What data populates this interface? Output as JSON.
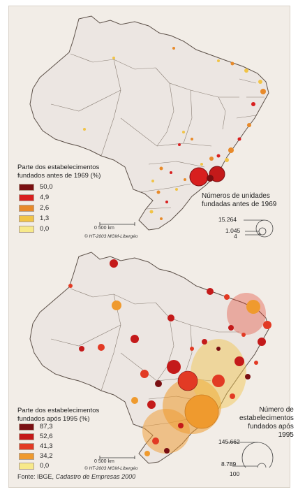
{
  "map1": {
    "legend_title_line1": "Parte dos estabelecimentos",
    "legend_title_line2": "fundados antes de 1969 (%)",
    "legend_values": [
      "50,0",
      "4,9",
      "2,6",
      "1,3",
      "0,0"
    ],
    "legend_colors": [
      "#7a0f12",
      "#d81f1f",
      "#e88a2a",
      "#f1c447",
      "#f7e98a"
    ],
    "circle_title_line1": "Números de unidades",
    "circle_title_line2": "fundadas antes de 1969",
    "circle_values": [
      "15.264",
      "1.045",
      "4"
    ],
    "scale_label": "0        500 km",
    "credit": "© HT-2003 MGM-Libergéo"
  },
  "map2": {
    "legend_title_line1": "Parte dos estabelecimentos",
    "legend_title_line2": "fundados após 1995 (%)",
    "legend_values": [
      "87,3",
      "52,6",
      "41,3",
      "34,2",
      "0,0"
    ],
    "legend_colors": [
      "#7a0f12",
      "#c41a1a",
      "#e23a24",
      "#ef9a2e",
      "#f7e98a"
    ],
    "circle_title_line1": "Número de",
    "circle_title_line2": "estabelecimentos",
    "circle_title_line3": "fundados após 1995",
    "circle_values": [
      "145.662",
      "8.789",
      "100"
    ],
    "scale_label": "0        500 km",
    "credit": "© HT-2003 MGM-Libergéo"
  },
  "source_prefix": "Fonte: IBGE, ",
  "source_italic": "Cadastro de Empresas 2000"
}
